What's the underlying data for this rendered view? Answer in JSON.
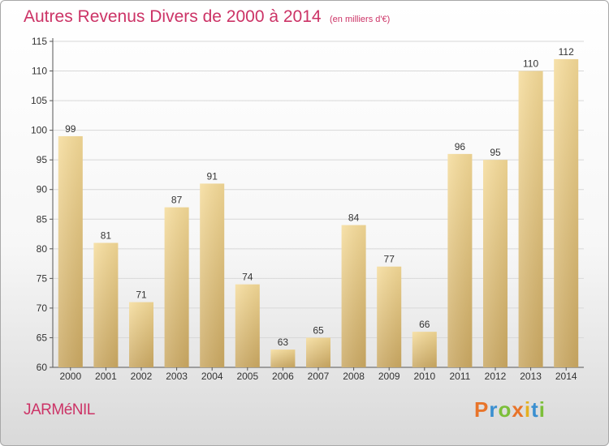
{
  "header": {
    "title": "Autres Revenus Divers de 2000 à 2014",
    "unit": "(en milliers d'€)"
  },
  "footer": {
    "place": "JARMéNIL",
    "logo": "Proxiti"
  },
  "colors": {
    "title": "#cc3366",
    "bar_light": "#f5dc9c",
    "bar_dark": "#c9a864",
    "grid": "#d8d8d8"
  },
  "chart_data": {
    "type": "bar",
    "title": "Autres Revenus Divers de 2000 à 2014",
    "subtitle": "(en milliers d'€)",
    "xlabel": "",
    "ylabel": "",
    "categories": [
      "2000",
      "2001",
      "2002",
      "2003",
      "2004",
      "2005",
      "2006",
      "2007",
      "2008",
      "2009",
      "2010",
      "2011",
      "2012",
      "2013",
      "2014"
    ],
    "values": [
      99,
      81,
      71,
      87,
      91,
      74,
      63,
      65,
      84,
      77,
      66,
      96,
      95,
      110,
      112
    ],
    "ylim": [
      60,
      115
    ],
    "yticks": [
      60,
      65,
      70,
      75,
      80,
      85,
      90,
      95,
      100,
      105,
      110,
      115
    ],
    "grid": true,
    "data_labels": true
  }
}
